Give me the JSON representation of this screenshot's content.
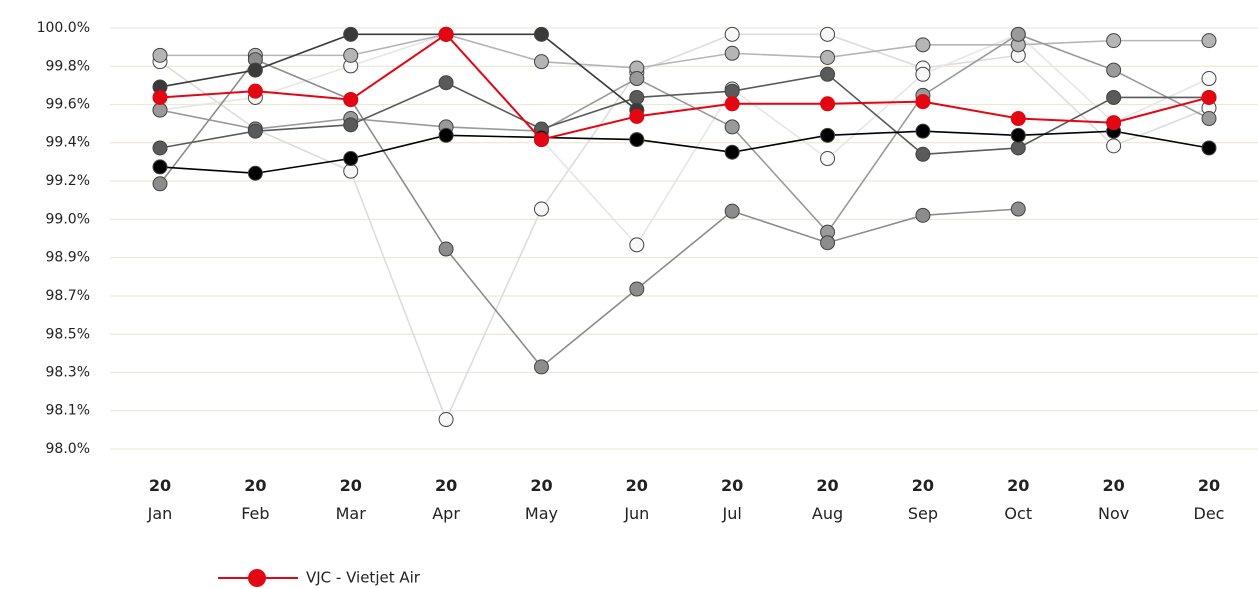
{
  "chart_data": {
    "type": "line",
    "categories": [
      "20 Jan",
      "20 Feb",
      "20 Mar",
      "20 Apr",
      "20 May",
      "20 Jun",
      "20 Jul",
      "20 Aug",
      "20 Sep",
      "20 Oct",
      "20 Nov",
      "20 Dec"
    ],
    "ylim": [
      98,
      100
    ],
    "yticks": [
      {
        "value": 100,
        "label": "100.0%"
      },
      {
        "value": 99.818,
        "label": "99.8%"
      },
      {
        "value": 99.636,
        "label": "99.6%"
      },
      {
        "value": 99.455,
        "label": "99.4%"
      },
      {
        "value": 99.273,
        "label": "99.2%"
      },
      {
        "value": 99.091,
        "label": "99.0%"
      },
      {
        "value": 98.909,
        "label": "98.9%"
      },
      {
        "value": 98.727,
        "label": "98.7%"
      },
      {
        "value": 98.545,
        "label": "98.5%"
      },
      {
        "value": 98.364,
        "label": "98.3%"
      },
      {
        "value": 98.182,
        "label": "98.1%"
      },
      {
        "value": 98,
        "label": "98.0%"
      }
    ],
    "grid": true,
    "series": [
      {
        "color": "#dddddd",
        "values": [
          99.84,
          99.52,
          99.32,
          98.14,
          99.14,
          99.79,
          99.97,
          99.97,
          99.81,
          99.87,
          99.44,
          99.62
        ]
      },
      {
        "color": "#e6e6e6",
        "values": [
          99.61,
          99.67,
          99.82,
          99.97,
          99.47,
          98.97,
          99.71,
          99.38,
          99.78,
          99.97,
          99.55,
          99.76
        ]
      },
      {
        "color": "#b5b5b5",
        "values": [
          99.87,
          99.87,
          99.87,
          99.97,
          99.84,
          99.81,
          99.88,
          99.86,
          99.92,
          99.92,
          99.94,
          99.94
        ]
      },
      {
        "color": "#9a9a9a",
        "values": [
          99.61,
          99.52,
          99.57,
          99.53,
          99.51,
          99.76,
          99.53,
          99.03,
          99.68,
          99.97,
          99.8,
          99.57
        ]
      },
      {
        "color": "#8c8c8c",
        "values": [
          99.26,
          99.85,
          99.66,
          98.95,
          98.39,
          98.76,
          99.13,
          98.98,
          99.11,
          99.14,
          null,
          null
        ]
      },
      {
        "color": "#5a5a5a",
        "values": [
          99.43,
          99.51,
          99.54,
          99.74,
          99.52,
          99.67,
          99.7,
          99.78,
          99.4,
          99.43,
          99.67,
          99.67
        ]
      },
      {
        "color": "#3a3a3a",
        "values": [
          99.72,
          99.8,
          99.97,
          99.97,
          99.97,
          99.61,
          null,
          null,
          null,
          null,
          null,
          null
        ]
      },
      {
        "color": "#000000",
        "values": [
          99.34,
          99.31,
          99.38,
          99.49,
          99.48,
          99.47,
          99.41,
          99.49,
          99.51,
          99.49,
          99.51,
          99.43
        ]
      },
      {
        "name": "VJC - Vietjet Air",
        "color": "#e30613",
        "values": [
          99.67,
          99.7,
          99.66,
          99.97,
          99.47,
          99.58,
          99.64,
          99.64,
          99.65,
          99.57,
          99.55,
          99.67
        ]
      }
    ]
  }
}
